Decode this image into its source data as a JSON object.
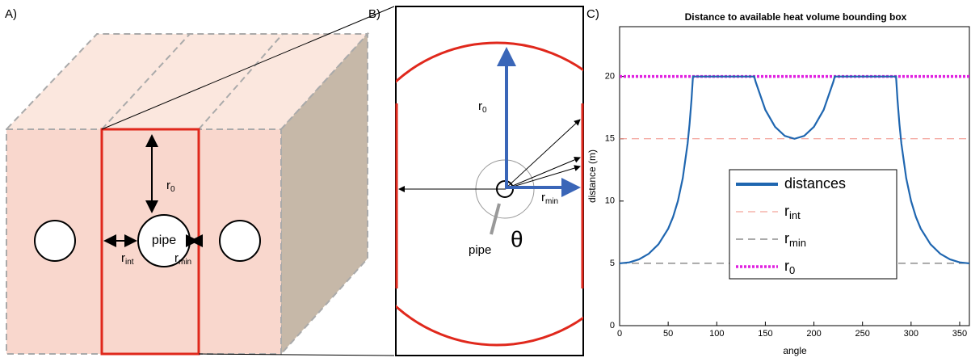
{
  "panel_a": {
    "label": "A)",
    "pipe": "pipe",
    "r0": {
      "main": "r",
      "sub": "0"
    },
    "rint": {
      "main": "r",
      "sub": "int"
    },
    "rmin": {
      "main": "r",
      "sub": "min"
    }
  },
  "panel_b": {
    "label": "B)",
    "r0": {
      "main": "r",
      "sub": "0"
    },
    "rmin": {
      "main": "r",
      "sub": "min"
    },
    "pipe": "pipe",
    "theta": "θ"
  },
  "chart_data": {
    "type": "line",
    "panel_label": "C)",
    "title": "Distance to available heat volume bounding box",
    "x_label": "angle",
    "y_label": "distance (m)",
    "x": [
      0,
      10,
      20,
      30,
      40,
      50,
      55,
      60,
      65,
      70,
      72,
      74,
      75.5,
      100,
      120,
      138.6,
      140,
      150,
      160,
      170,
      180,
      190,
      200,
      210,
      220,
      221.4,
      240,
      260,
      284.5,
      286,
      288,
      290,
      295,
      300,
      305,
      310,
      320,
      330,
      340,
      350,
      360
    ],
    "series": [
      {
        "name": "distances",
        "color": "#1f66b0",
        "values": [
          5,
          5.08,
          5.32,
          5.77,
          6.53,
          7.78,
          8.72,
          10,
          11.83,
          14.62,
          16.18,
          18.14,
          20,
          20,
          20,
          20,
          19.58,
          17.32,
          15.96,
          15.23,
          15,
          15.23,
          15.96,
          17.32,
          19.58,
          20,
          20,
          20,
          20,
          18.14,
          16.18,
          14.62,
          11.83,
          10,
          8.72,
          7.78,
          6.53,
          5.77,
          5.32,
          5.08,
          5
        ]
      }
    ],
    "hlines": [
      {
        "name": "r",
        "name_sub": "int",
        "value": 15,
        "color": "#f08c80",
        "style": "dashed"
      },
      {
        "name": "r",
        "name_sub": "min",
        "value": 5,
        "color": "#555555",
        "style": "dashed"
      },
      {
        "name": "r",
        "name_sub": "0",
        "value": 20,
        "color": "#e020e0",
        "style": "dotted"
      }
    ],
    "xlim": [
      0,
      360
    ],
    "xticks": [
      0,
      50,
      100,
      150,
      200,
      250,
      300,
      350
    ],
    "ylim": [
      0,
      24
    ],
    "yticks": [
      0,
      5,
      10,
      15,
      20
    ]
  }
}
